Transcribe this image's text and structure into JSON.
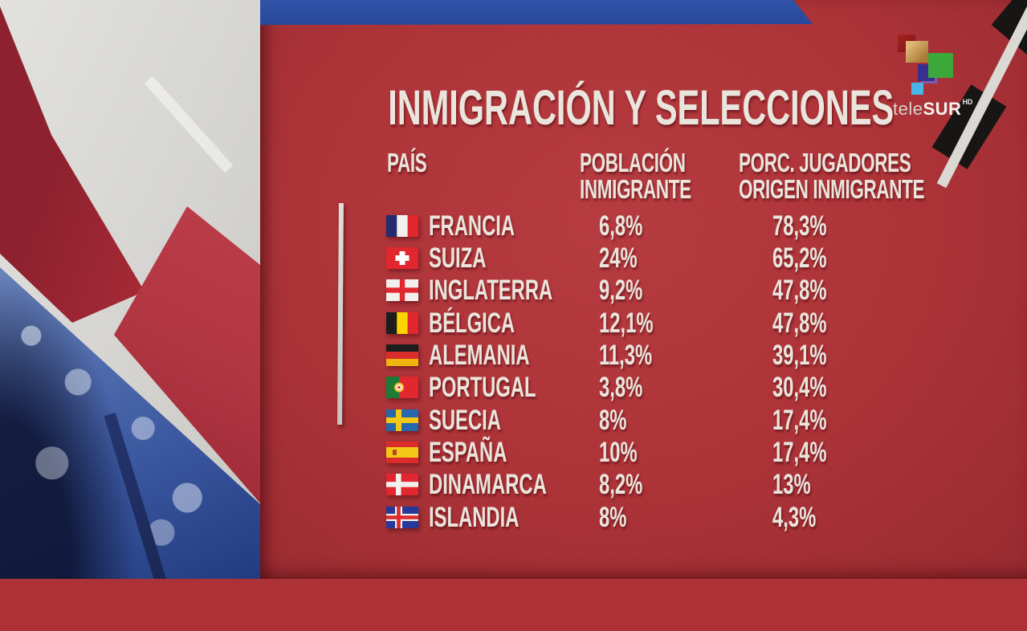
{
  "title": "INMIGRACIÓN Y SELECCIONES",
  "logo": {
    "name_light": "tele",
    "name_bold": "SUR",
    "badge": "HD"
  },
  "table": {
    "headers": {
      "country": "PAÍS",
      "population_line1": "POBLACIÓN",
      "population_line2": "INMIGRANTE",
      "players_line1": "PORC. JUGADORES",
      "players_line2": "ORIGEN INMIGRANTE"
    },
    "rows": [
      {
        "flag": "francia",
        "country": "FRANCIA",
        "poblacion_inmigrante": "6,8%",
        "porc_jugadores": "78,3%"
      },
      {
        "flag": "suiza",
        "country": "SUIZA",
        "poblacion_inmigrante": "24%",
        "porc_jugadores": "65,2%"
      },
      {
        "flag": "inglaterra",
        "country": "INGLATERRA",
        "poblacion_inmigrante": "9,2%",
        "porc_jugadores": "47,8%"
      },
      {
        "flag": "belgica",
        "country": "BÉLGICA",
        "poblacion_inmigrante": "12,1%",
        "porc_jugadores": "47,8%"
      },
      {
        "flag": "alemania",
        "country": "ALEMANIA",
        "poblacion_inmigrante": "11,3%",
        "porc_jugadores": "39,1%"
      },
      {
        "flag": "portugal",
        "country": "PORTUGAL",
        "poblacion_inmigrante": "3,8%",
        "porc_jugadores": "30,4%"
      },
      {
        "flag": "suecia",
        "country": "SUECIA",
        "poblacion_inmigrante": "8%",
        "porc_jugadores": "17,4%"
      },
      {
        "flag": "espana",
        "country": "ESPAÑA",
        "poblacion_inmigrante": "10%",
        "porc_jugadores": "17,4%"
      },
      {
        "flag": "dinamarca",
        "country": "DINAMARCA",
        "poblacion_inmigrante": "8,2%",
        "porc_jugadores": "13%"
      },
      {
        "flag": "islandia",
        "country": "ISLANDIA",
        "poblacion_inmigrante": "8%",
        "porc_jugadores": "4,3%"
      }
    ]
  },
  "chart_data": {
    "type": "table",
    "title": "INMIGRACIÓN Y SELECCIONES",
    "columns": [
      "PAÍS",
      "POBLACIÓN INMIGRANTE",
      "PORC. JUGADORES ORIGEN INMIGRANTE"
    ],
    "rows": [
      [
        "FRANCIA",
        "6,8%",
        "78,3%"
      ],
      [
        "SUIZA",
        "24%",
        "65,2%"
      ],
      [
        "INGLATERRA",
        "9,2%",
        "47,8%"
      ],
      [
        "BÉLGICA",
        "12,1%",
        "47,8%"
      ],
      [
        "ALEMANIA",
        "11,3%",
        "39,1%"
      ],
      [
        "PORTUGAL",
        "3,8%",
        "30,4%"
      ],
      [
        "SUECIA",
        "8%",
        "17,4%"
      ],
      [
        "ESPAÑA",
        "10%",
        "17,4%"
      ],
      [
        "DINAMARCA",
        "8,2%",
        "13%"
      ],
      [
        "ISLANDIA",
        "8%",
        "4,3%"
      ]
    ],
    "values_numeric": {
      "poblacion_inmigrante_pct": [
        6.8,
        24,
        9.2,
        12.1,
        11.3,
        3.8,
        8,
        10,
        8.2,
        8
      ],
      "porc_jugadores_origen_inmigrante_pct": [
        78.3,
        65.2,
        47.8,
        47.8,
        39.1,
        30.4,
        17.4,
        17.4,
        13,
        4.3
      ]
    }
  },
  "colors": {
    "panel_red": "#ad3237",
    "band_blue": "#2b4b9e",
    "text_cream": "#ece7de",
    "ribbon_black": "#161513",
    "stripe_gray": "#dcdad4",
    "crowd_blue": "#3a57a0"
  }
}
